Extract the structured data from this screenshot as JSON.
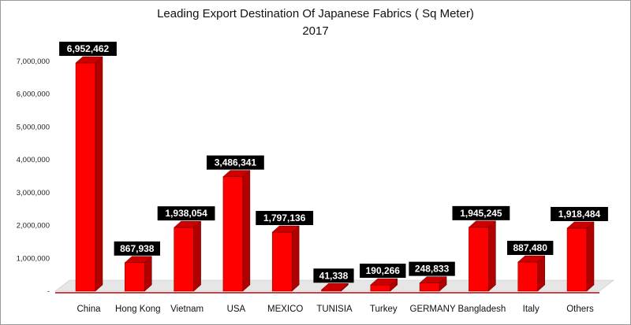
{
  "chart_data": {
    "type": "bar",
    "title": "Leading Export Destination Of Japanese Fabrics ( Sq Meter)",
    "subtitle": "2017",
    "xlabel": "",
    "ylabel": "",
    "categories": [
      "China",
      "Hong Kong",
      "Vietnam",
      "USA",
      "MEXICO",
      "TUNISIA",
      "Turkey",
      "GERMANY",
      "Bangladesh",
      "Italy",
      "Others"
    ],
    "values": [
      6952462,
      867938,
      1938054,
      3486341,
      1797136,
      41338,
      190266,
      248833,
      1945245,
      887480,
      1918484
    ],
    "data_labels": [
      "6,952,462",
      "867,938",
      "1,938,054",
      "3,486,341",
      "1,797,136",
      "41,338",
      "190,266",
      "248,833",
      "1,945,245",
      "887,480",
      "1,918,484"
    ],
    "ylim": [
      0,
      7000000
    ],
    "yticks": [
      0,
      1000000,
      2000000,
      3000000,
      4000000,
      5000000,
      6000000,
      7000000
    ],
    "ytick_labels": [
      "-",
      "1,000,000",
      "2,000,000",
      "3,000,000",
      "4,000,000",
      "5,000,000",
      "6,000,000",
      "7,000,000"
    ],
    "grid": false,
    "legend": "none",
    "colors": {
      "bar_front": "#ff0000",
      "bar_side": "#b00000",
      "bar_top": "#cc0000",
      "floor": "#e6e6e6",
      "label_bg": "#000000",
      "label_text": "#ffffff"
    }
  }
}
